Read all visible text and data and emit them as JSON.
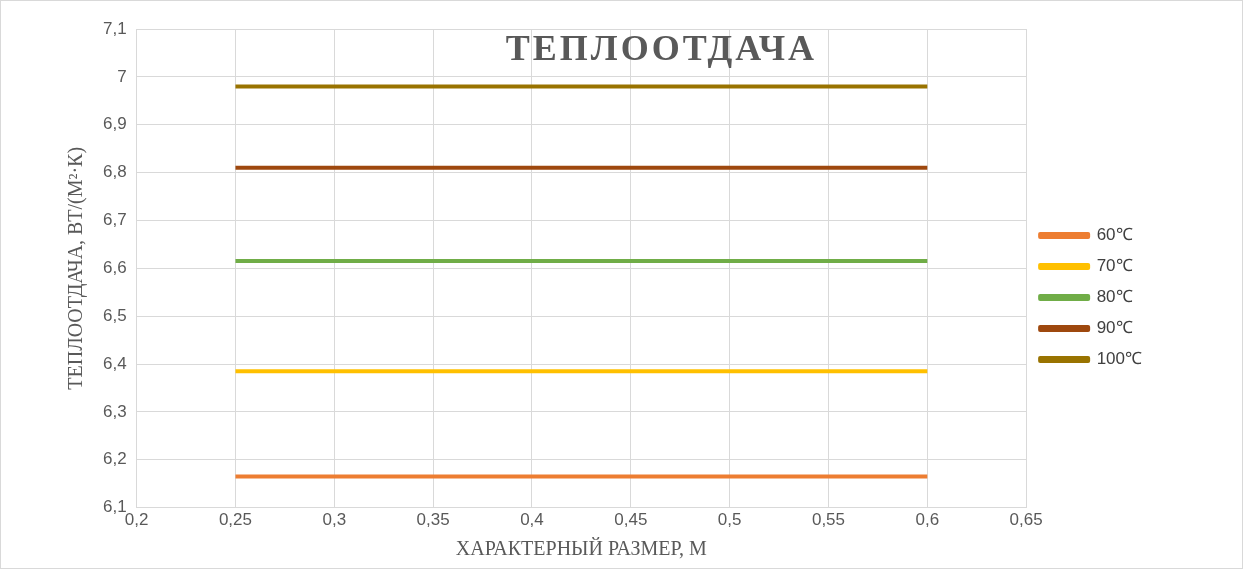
{
  "chart_data": {
    "type": "line",
    "title": "ТЕПЛООТДАЧА",
    "xlabel": "ХАРАКТЕРНЫЙ РАЗМЕР, М",
    "ylabel": "ТЕПЛООТДАЧА, ВТ/(М²·К)",
    "xlim": [
      0.2,
      0.65
    ],
    "xticks": [
      {
        "value": 0.2,
        "label": "0,2"
      },
      {
        "value": 0.25,
        "label": "0,25"
      },
      {
        "value": 0.3,
        "label": "0,3"
      },
      {
        "value": 0.35,
        "label": "0,35"
      },
      {
        "value": 0.4,
        "label": "0,4"
      },
      {
        "value": 0.45,
        "label": "0,45"
      },
      {
        "value": 0.5,
        "label": "0,5"
      },
      {
        "value": 0.55,
        "label": "0,55"
      },
      {
        "value": 0.6,
        "label": "0,6"
      },
      {
        "value": 0.65,
        "label": "0,65"
      }
    ],
    "ylim": [
      6.1,
      7.1
    ],
    "yticks": [
      {
        "value": 6.1,
        "label": "6,1"
      },
      {
        "value": 6.2,
        "label": "6,2"
      },
      {
        "value": 6.3,
        "label": "6,3"
      },
      {
        "value": 6.4,
        "label": "6,4"
      },
      {
        "value": 6.5,
        "label": "6,5"
      },
      {
        "value": 6.6,
        "label": "6,6"
      },
      {
        "value": 6.7,
        "label": "6,7"
      },
      {
        "value": 6.8,
        "label": "6,8"
      },
      {
        "value": 6.9,
        "label": "6,9"
      },
      7,
      {
        "value": 7.1,
        "label": "7,1"
      }
    ],
    "x": [
      0.25,
      0.6
    ],
    "series": [
      {
        "name": "60℃",
        "color": "#ed7d31",
        "values": [
          6.165,
          6.165
        ]
      },
      {
        "name": "70℃",
        "color": "#ffc000",
        "values": [
          6.385,
          6.385
        ]
      },
      {
        "name": "80℃",
        "color": "#70ad47",
        "values": [
          6.615,
          6.615
        ]
      },
      {
        "name": "90℃",
        "color": "#9e480e",
        "values": [
          6.81,
          6.81
        ]
      },
      {
        "name": "100℃",
        "color": "#997300",
        "values": [
          6.98,
          6.98
        ]
      }
    ],
    "grid": true,
    "legend": "right",
    "marker": "none",
    "line_style": "solid"
  }
}
